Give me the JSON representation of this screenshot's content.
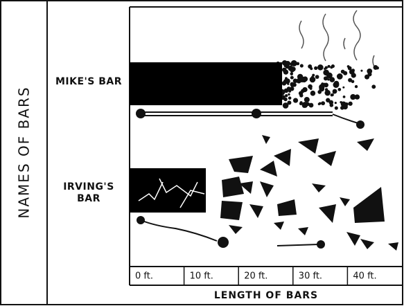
{
  "chart_data": {
    "type": "bar",
    "orientation": "horizontal",
    "x_label": "LENGTH OF BARS",
    "y_label": "NAMES OF BARS",
    "categories": [
      "MIKE'S BAR",
      "IRVING'S BAR"
    ],
    "values": [
      28,
      14
    ],
    "color": "#000000",
    "xlim": [
      0,
      50
    ],
    "xticks": [
      {
        "value": 0,
        "label": "0 ft."
      },
      {
        "value": 10,
        "label": "10 ft."
      },
      {
        "value": 20,
        "label": "20 ft."
      },
      {
        "value": 30,
        "label": "30 ft."
      },
      {
        "value": 40,
        "label": "40 ft."
      }
    ]
  }
}
